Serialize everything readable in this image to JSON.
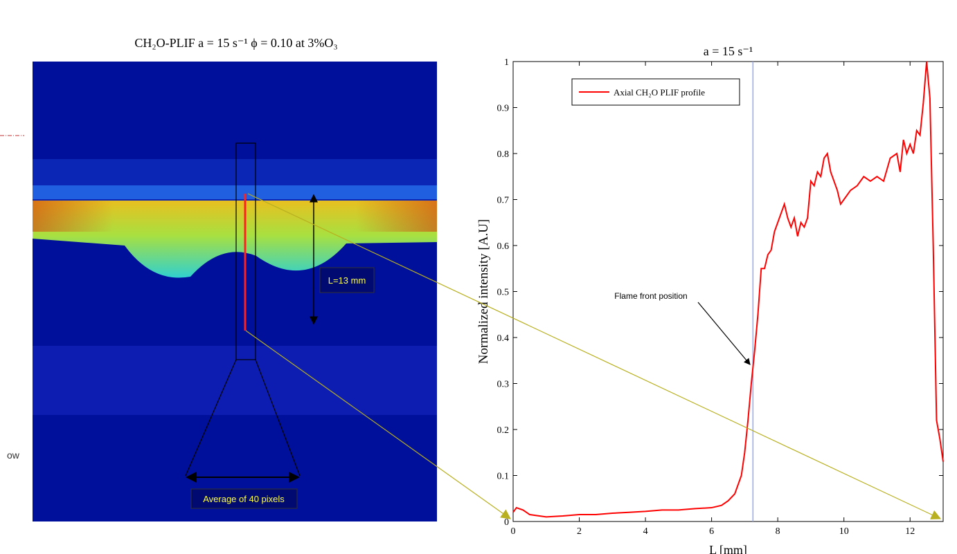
{
  "image": {
    "title": "CH₂O-PLIF a = 15 s⁻¹ ϕ = 0.10 at 3%O₃",
    "length_label": "L=13 mm",
    "average_label": "Average of 40 pixels",
    "edge_text": "ow"
  },
  "chart_data": {
    "type": "line",
    "title": "a = 15 s⁻¹",
    "xlabel": "L [mm]",
    "ylabel": "Normalized intensity [A.U]",
    "annotation": "Flame front position",
    "marker_x": 7.25,
    "marker_color": "#8fa8ff",
    "x": [
      0,
      0.1,
      0.3,
      0.5,
      1,
      1.5,
      2,
      2.5,
      3,
      3.5,
      4,
      4.5,
      5,
      5.5,
      6,
      6.3,
      6.5,
      6.7,
      6.8,
      6.9,
      7.0,
      7.1,
      7.2,
      7.3,
      7.4,
      7.5,
      7.6,
      7.7,
      7.8,
      7.9,
      8.0,
      8.1,
      8.2,
      8.3,
      8.4,
      8.5,
      8.6,
      8.7,
      8.8,
      8.9,
      9.0,
      9.1,
      9.2,
      9.3,
      9.4,
      9.5,
      9.6,
      9.7,
      9.8,
      9.9,
      10.0,
      10.2,
      10.4,
      10.6,
      10.8,
      11.0,
      11.2,
      11.4,
      11.6,
      11.7,
      11.8,
      11.9,
      12.0,
      12.1,
      12.2,
      12.3,
      12.4,
      12.5,
      12.6,
      12.7,
      12.8,
      12.9,
      13
    ],
    "series": [
      {
        "name": "Axial CH₂O PLIF profile",
        "color": "#ff0000",
        "values": [
          0.02,
          0.03,
          0.025,
          0.015,
          0.01,
          0.012,
          0.015,
          0.015,
          0.018,
          0.02,
          0.022,
          0.025,
          0.025,
          0.028,
          0.03,
          0.035,
          0.045,
          0.06,
          0.08,
          0.1,
          0.15,
          0.22,
          0.3,
          0.37,
          0.45,
          0.55,
          0.55,
          0.58,
          0.59,
          0.63,
          0.65,
          0.67,
          0.69,
          0.66,
          0.64,
          0.66,
          0.62,
          0.65,
          0.64,
          0.66,
          0.74,
          0.73,
          0.76,
          0.75,
          0.79,
          0.8,
          0.76,
          0.74,
          0.72,
          0.69,
          0.7,
          0.72,
          0.73,
          0.75,
          0.74,
          0.75,
          0.74,
          0.79,
          0.8,
          0.76,
          0.83,
          0.8,
          0.82,
          0.8,
          0.85,
          0.84,
          0.91,
          1.0,
          0.92,
          0.6,
          0.22,
          0.18,
          0.13
        ]
      }
    ],
    "xlim": [
      0,
      13
    ],
    "ylim": [
      0,
      1
    ],
    "xticks": [
      0,
      2,
      4,
      6,
      8,
      10,
      12
    ],
    "yticks": [
      0,
      0.1,
      0.2,
      0.3,
      0.4,
      0.5,
      0.6,
      0.7,
      0.8,
      0.9,
      1
    ]
  }
}
